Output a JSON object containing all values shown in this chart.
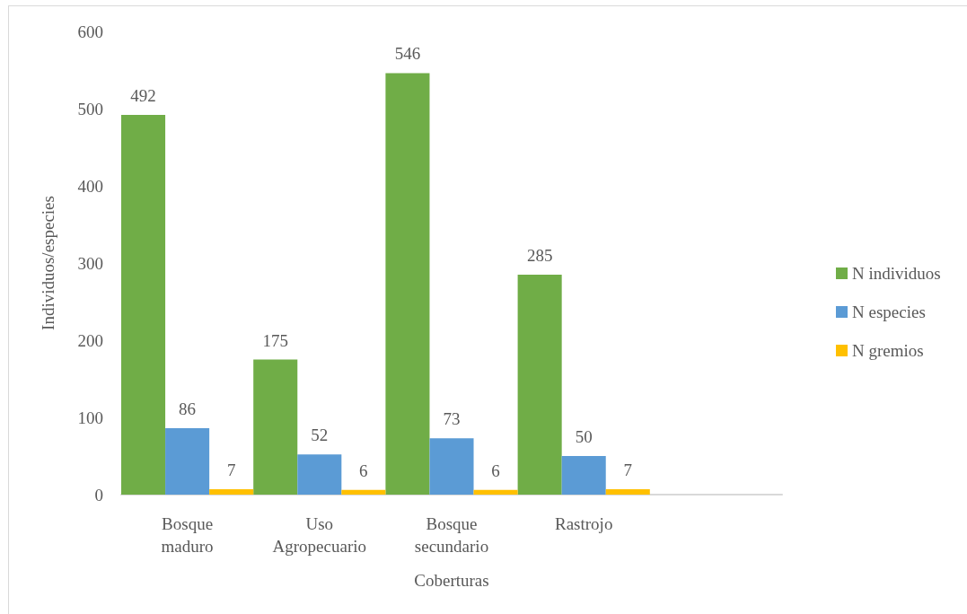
{
  "chart_data": {
    "type": "bar",
    "xlabel": "Coberturas",
    "ylabel": "Individuos/especies",
    "categories": [
      "Bosque maduro",
      "Uso Agropecuario",
      "Bosque secundario",
      "Rastrojo",
      null
    ],
    "series": [
      {
        "name": "N individuos",
        "color": "#70ad47",
        "values": [
          492,
          175,
          546,
          285,
          null
        ]
      },
      {
        "name": "N especies",
        "color": "#5b9bd5",
        "values": [
          86,
          52,
          73,
          50,
          null
        ]
      },
      {
        "name": "N gremios",
        "color": "#ffc000",
        "values": [
          7,
          6,
          6,
          7,
          null
        ]
      }
    ],
    "ylim": [
      0,
      600
    ],
    "yticks": [
      0,
      100,
      200,
      300,
      400,
      500,
      600
    ],
    "grid": false,
    "legend": "right",
    "data_labels": true
  }
}
